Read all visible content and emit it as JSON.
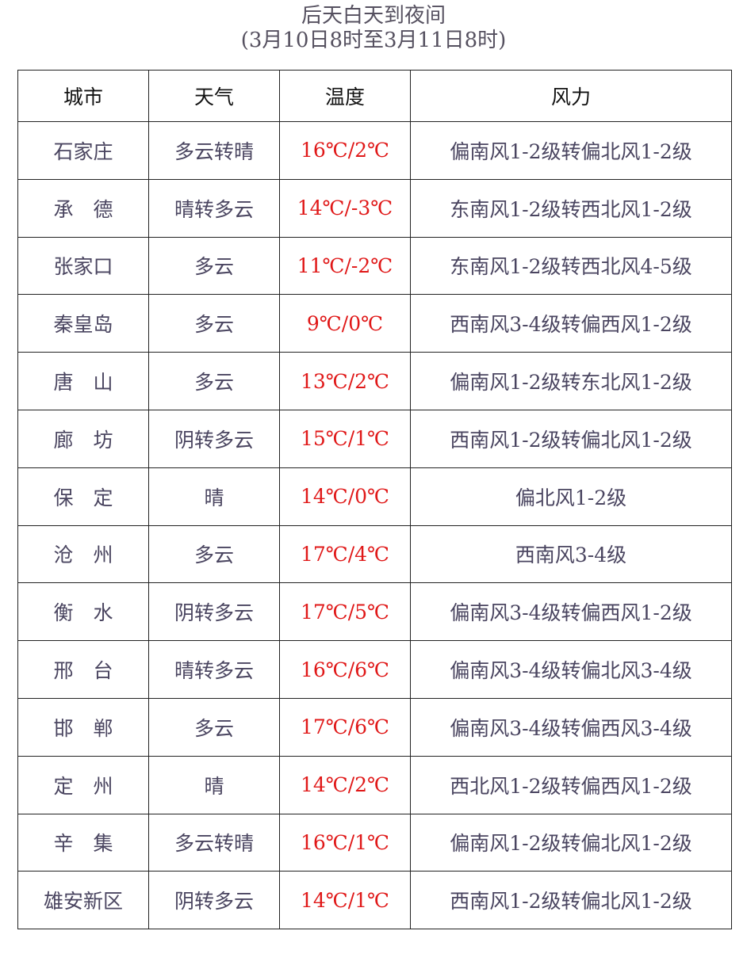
{
  "title": "后天白天到夜间",
  "subtitle": "(3月10日8时至3月11日8时)",
  "colors": {
    "text": "#4a4560",
    "temperature": "#e01818",
    "header": "#111111"
  },
  "headers": [
    "城市",
    "天气",
    "温度",
    "风力"
  ],
  "rows": [
    {
      "city": "石家庄",
      "weather": "多云转晴",
      "temp": "16℃/2℃",
      "wind": "偏南风1-2级转偏北风1-2级"
    },
    {
      "city": "承　德",
      "weather": "晴转多云",
      "temp": "14℃/-3℃",
      "wind": "东南风1-2级转西北风1-2级"
    },
    {
      "city": "张家口",
      "weather": "多云",
      "temp": "11℃/-2℃",
      "wind": "东南风1-2级转西北风4-5级"
    },
    {
      "city": "秦皇岛",
      "weather": "多云",
      "temp": "9℃/0℃",
      "wind": "西南风3-4级转偏西风1-2级"
    },
    {
      "city": "唐　山",
      "weather": "多云",
      "temp": "13℃/2℃",
      "wind": "偏南风1-2级转东北风1-2级"
    },
    {
      "city": "廊　坊",
      "weather": "阴转多云",
      "temp": "15℃/1℃",
      "wind": "西南风1-2级转偏北风1-2级"
    },
    {
      "city": "保　定",
      "weather": "晴",
      "temp": "14℃/0℃",
      "wind": "偏北风1-2级"
    },
    {
      "city": "沧　州",
      "weather": "多云",
      "temp": "17℃/4℃",
      "wind": "西南风3-4级"
    },
    {
      "city": "衡　水",
      "weather": "阴转多云",
      "temp": "17℃/5℃",
      "wind": "偏南风3-4级转偏西风1-2级"
    },
    {
      "city": "邢　台",
      "weather": "晴转多云",
      "temp": "16℃/6℃",
      "wind": "偏南风3-4级转偏北风3-4级"
    },
    {
      "city": "邯　郸",
      "weather": "多云",
      "temp": "17℃/6℃",
      "wind": "偏南风3-4级转偏西风3-4级"
    },
    {
      "city": "定　州",
      "weather": "晴",
      "temp": "14℃/2℃",
      "wind": "西北风1-2级转偏西风1-2级"
    },
    {
      "city": "辛　集",
      "weather": "多云转晴",
      "temp": "16℃/1℃",
      "wind": "偏南风1-2级转偏北风1-2级"
    },
    {
      "city": "雄安新区",
      "weather": "阴转多云",
      "temp": "14℃/1℃",
      "wind": "西南风1-2级转偏北风1-2级"
    }
  ]
}
